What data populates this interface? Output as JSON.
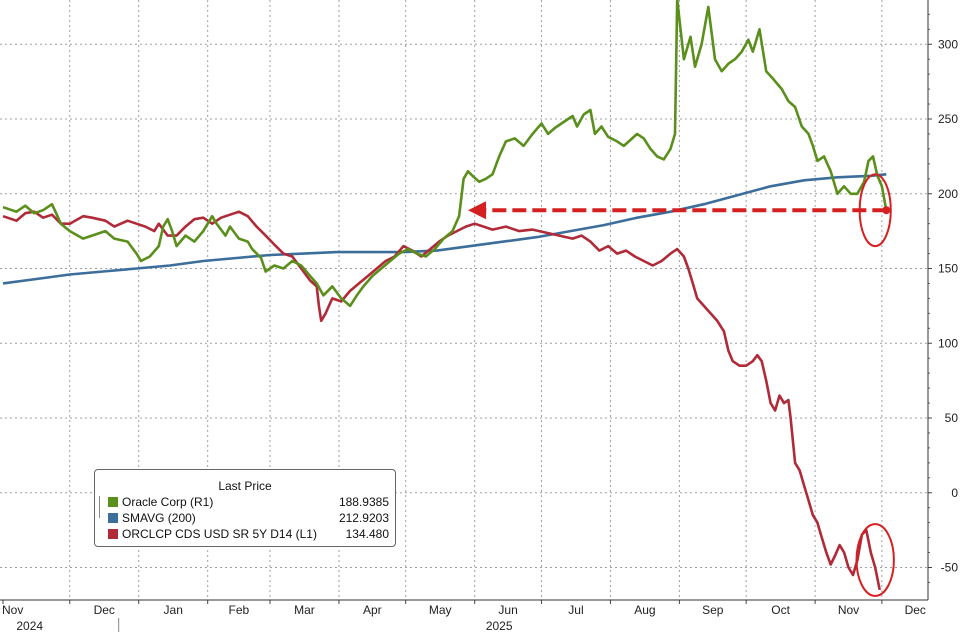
{
  "chart_data": {
    "type": "line",
    "right_axis": {
      "ylim": [
        -65,
        330
      ],
      "ticks": [
        -50,
        0,
        50,
        100,
        150,
        200,
        250,
        300
      ]
    },
    "left_axis": {
      "note": "L1 axis unlabeled; CDS series drawn on independent scale"
    },
    "x_ticks": [
      {
        "label": "Nov",
        "d": 0
      },
      {
        "label": "Dec",
        "d": 30
      },
      {
        "label": "Jan",
        "d": 61
      },
      {
        "label": "Feb",
        "d": 92
      },
      {
        "label": "Mar",
        "d": 120
      },
      {
        "label": "Apr",
        "d": 151
      },
      {
        "label": "May",
        "d": 181
      },
      {
        "label": "Jun",
        "d": 212
      },
      {
        "label": "Jul",
        "d": 242
      },
      {
        "label": "Aug",
        "d": 273
      },
      {
        "label": "Sep",
        "d": 304
      },
      {
        "label": "Oct",
        "d": 334
      },
      {
        "label": "Nov",
        "d": 365
      },
      {
        "label": "Dec",
        "d": 395
      }
    ],
    "years": [
      {
        "label": "2024",
        "d": 12
      },
      {
        "label": "2025",
        "d": 223
      }
    ],
    "x_range_days": [
      0,
      400
    ],
    "grid": true,
    "legend_placement": "bottom-left",
    "series": [
      {
        "name": "Oracle Corp (R1)",
        "color": "#5a8f1c",
        "axis": "right",
        "points": [
          [
            0,
            191
          ],
          [
            6,
            188
          ],
          [
            10,
            192
          ],
          [
            14,
            187
          ],
          [
            18,
            189
          ],
          [
            22,
            193
          ],
          [
            26,
            180
          ],
          [
            30,
            175
          ],
          [
            36,
            170
          ],
          [
            40,
            172
          ],
          [
            46,
            175
          ],
          [
            50,
            170
          ],
          [
            56,
            168
          ],
          [
            60,
            160
          ],
          [
            62,
            155
          ],
          [
            66,
            158
          ],
          [
            70,
            165
          ],
          [
            72,
            178
          ],
          [
            74,
            183
          ],
          [
            76,
            175
          ],
          [
            78,
            165
          ],
          [
            82,
            172
          ],
          [
            86,
            168
          ],
          [
            90,
            175
          ],
          [
            94,
            185
          ],
          [
            96,
            180
          ],
          [
            100,
            172
          ],
          [
            102,
            178
          ],
          [
            106,
            170
          ],
          [
            110,
            168
          ],
          [
            112,
            163
          ],
          [
            116,
            157
          ],
          [
            118,
            148
          ],
          [
            122,
            152
          ],
          [
            126,
            150
          ],
          [
            130,
            155
          ],
          [
            134,
            152
          ],
          [
            138,
            145
          ],
          [
            141,
            140
          ],
          [
            144,
            132
          ],
          [
            148,
            138
          ],
          [
            152,
            130
          ],
          [
            156,
            125
          ],
          [
            159,
            132
          ],
          [
            162,
            138
          ],
          [
            166,
            145
          ],
          [
            170,
            150
          ],
          [
            174,
            155
          ],
          [
            178,
            160
          ],
          [
            182,
            163
          ],
          [
            186,
            160
          ],
          [
            190,
            158
          ],
          [
            194,
            163
          ],
          [
            198,
            170
          ],
          [
            202,
            175
          ],
          [
            205,
            185
          ],
          [
            207,
            210
          ],
          [
            209,
            215
          ],
          [
            211,
            212
          ],
          [
            214,
            208
          ],
          [
            217,
            210
          ],
          [
            220,
            213
          ],
          [
            223,
            225
          ],
          [
            226,
            235
          ],
          [
            230,
            237
          ],
          [
            234,
            232
          ],
          [
            238,
            240
          ],
          [
            242,
            247
          ],
          [
            245,
            240
          ],
          [
            248,
            244
          ],
          [
            252,
            248
          ],
          [
            256,
            252
          ],
          [
            258,
            245
          ],
          [
            261,
            253
          ],
          [
            264,
            256
          ],
          [
            266,
            240
          ],
          [
            269,
            245
          ],
          [
            272,
            238
          ],
          [
            276,
            235
          ],
          [
            279,
            232
          ],
          [
            282,
            236
          ],
          [
            285,
            240
          ],
          [
            288,
            237
          ],
          [
            291,
            230
          ],
          [
            294,
            225
          ],
          [
            297,
            223
          ],
          [
            300,
            230
          ],
          [
            302,
            240
          ],
          [
            303,
            330
          ],
          [
            306,
            290
          ],
          [
            309,
            305
          ],
          [
            311,
            285
          ],
          [
            314,
            300
          ],
          [
            317,
            325
          ],
          [
            320,
            290
          ],
          [
            323,
            282
          ],
          [
            326,
            287
          ],
          [
            329,
            290
          ],
          [
            332,
            295
          ],
          [
            335,
            303
          ],
          [
            337,
            295
          ],
          [
            340,
            310
          ],
          [
            343,
            282
          ],
          [
            346,
            277
          ],
          [
            350,
            270
          ],
          [
            353,
            262
          ],
          [
            356,
            258
          ],
          [
            359,
            245
          ],
          [
            362,
            240
          ],
          [
            364,
            232
          ],
          [
            366,
            222
          ],
          [
            369,
            225
          ],
          [
            372,
            215
          ],
          [
            375,
            200
          ],
          [
            378,
            205
          ],
          [
            381,
            200
          ],
          [
            384,
            200
          ],
          [
            387,
            208
          ],
          [
            389,
            222
          ],
          [
            391,
            225
          ],
          [
            393,
            212
          ],
          [
            395,
            205
          ],
          [
            397,
            189
          ]
        ]
      },
      {
        "name": "SMAVG (200)",
        "color": "#3c6e9c",
        "axis": "right",
        "points": [
          [
            0,
            140
          ],
          [
            15,
            143
          ],
          [
            30,
            146
          ],
          [
            45,
            148
          ],
          [
            60,
            150
          ],
          [
            75,
            152
          ],
          [
            90,
            155
          ],
          [
            105,
            157
          ],
          [
            120,
            159
          ],
          [
            135,
            160
          ],
          [
            150,
            161
          ],
          [
            165,
            161
          ],
          [
            180,
            161
          ],
          [
            195,
            162
          ],
          [
            210,
            165
          ],
          [
            225,
            168
          ],
          [
            240,
            171
          ],
          [
            255,
            175
          ],
          [
            270,
            179
          ],
          [
            285,
            184
          ],
          [
            300,
            188
          ],
          [
            315,
            193
          ],
          [
            330,
            199
          ],
          [
            345,
            205
          ],
          [
            360,
            209
          ],
          [
            375,
            211
          ],
          [
            390,
            212
          ],
          [
            397,
            213
          ]
        ]
      },
      {
        "name": "ORCLCP CDS USD SR 5Y D14  (L1)",
        "color": "#b02a38",
        "axis": "right-mapped",
        "points": [
          [
            0,
            185
          ],
          [
            6,
            182
          ],
          [
            10,
            187
          ],
          [
            14,
            188
          ],
          [
            18,
            184
          ],
          [
            22,
            186
          ],
          [
            26,
            180
          ],
          [
            30,
            180
          ],
          [
            36,
            185
          ],
          [
            40,
            184
          ],
          [
            46,
            182
          ],
          [
            50,
            178
          ],
          [
            56,
            182
          ],
          [
            60,
            180
          ],
          [
            64,
            178
          ],
          [
            68,
            175
          ],
          [
            70,
            180
          ],
          [
            72,
            176
          ],
          [
            74,
            172
          ],
          [
            78,
            172
          ],
          [
            82,
            178
          ],
          [
            86,
            183
          ],
          [
            90,
            184
          ],
          [
            94,
            180
          ],
          [
            98,
            184
          ],
          [
            102,
            186
          ],
          [
            106,
            188
          ],
          [
            110,
            185
          ],
          [
            114,
            178
          ],
          [
            118,
            172
          ],
          [
            122,
            166
          ],
          [
            126,
            160
          ],
          [
            130,
            158
          ],
          [
            134,
            150
          ],
          [
            138,
            142
          ],
          [
            141,
            138
          ],
          [
            142,
            125
          ],
          [
            143,
            115
          ],
          [
            145,
            120
          ],
          [
            148,
            130
          ],
          [
            152,
            128
          ],
          [
            156,
            135
          ],
          [
            160,
            140
          ],
          [
            164,
            145
          ],
          [
            168,
            150
          ],
          [
            172,
            155
          ],
          [
            176,
            158
          ],
          [
            180,
            165
          ],
          [
            184,
            162
          ],
          [
            188,
            158
          ],
          [
            192,
            163
          ],
          [
            196,
            168
          ],
          [
            200,
            172
          ],
          [
            204,
            175
          ],
          [
            208,
            178
          ],
          [
            212,
            180
          ],
          [
            216,
            178
          ],
          [
            220,
            176
          ],
          [
            226,
            178
          ],
          [
            232,
            175
          ],
          [
            238,
            176
          ],
          [
            244,
            174
          ],
          [
            250,
            172
          ],
          [
            256,
            170
          ],
          [
            260,
            172
          ],
          [
            264,
            168
          ],
          [
            268,
            162
          ],
          [
            272,
            165
          ],
          [
            276,
            160
          ],
          [
            280,
            162
          ],
          [
            284,
            158
          ],
          [
            288,
            155
          ],
          [
            292,
            152
          ],
          [
            296,
            155
          ],
          [
            300,
            160
          ],
          [
            303,
            163
          ],
          [
            306,
            158
          ],
          [
            308,
            150
          ],
          [
            310,
            140
          ],
          [
            312,
            130
          ],
          [
            315,
            125
          ],
          [
            318,
            120
          ],
          [
            321,
            115
          ],
          [
            324,
            108
          ],
          [
            326,
            95
          ],
          [
            328,
            88
          ],
          [
            331,
            85
          ],
          [
            334,
            85
          ],
          [
            337,
            88
          ],
          [
            339,
            92
          ],
          [
            341,
            88
          ],
          [
            343,
            75
          ],
          [
            345,
            60
          ],
          [
            347,
            55
          ],
          [
            349,
            65
          ],
          [
            351,
            60
          ],
          [
            353,
            62
          ],
          [
            354,
            50
          ],
          [
            356,
            20
          ],
          [
            358,
            15
          ],
          [
            360,
            5
          ],
          [
            362,
            -5
          ],
          [
            364,
            -15
          ],
          [
            366,
            -20
          ],
          [
            368,
            -30
          ],
          [
            370,
            -40
          ],
          [
            372,
            -48
          ],
          [
            374,
            -42
          ],
          [
            376,
            -35
          ],
          [
            378,
            -40
          ],
          [
            380,
            -50
          ],
          [
            382,
            -55
          ],
          [
            384,
            -45
          ],
          [
            386,
            -28
          ],
          [
            388,
            -25
          ],
          [
            390,
            -40
          ],
          [
            392,
            -50
          ],
          [
            394,
            -65
          ]
        ]
      }
    ],
    "annotations": {
      "arrow": {
        "from_d": 397,
        "to_d": 209,
        "y": 189,
        "color": "#d42020"
      },
      "ellipses": [
        {
          "d": 392,
          "y": 189,
          "rx_days": 5,
          "ry": 30
        },
        {
          "d": 392,
          "y": -45,
          "rx_days": 6,
          "ry": 30
        }
      ]
    }
  },
  "legend": {
    "title": "Last Price",
    "items": [
      {
        "name": "Oracle Corp  (R1)",
        "value": "188.9385",
        "color": "#5a8f1c"
      },
      {
        "name": "SMAVG (200)",
        "value": "212.9203",
        "color": "#3c6e9c"
      },
      {
        "name": "ORCLCP CDS USD SR 5Y D14  (L1)",
        "value": "134.480",
        "color": "#b02a38"
      }
    ]
  }
}
